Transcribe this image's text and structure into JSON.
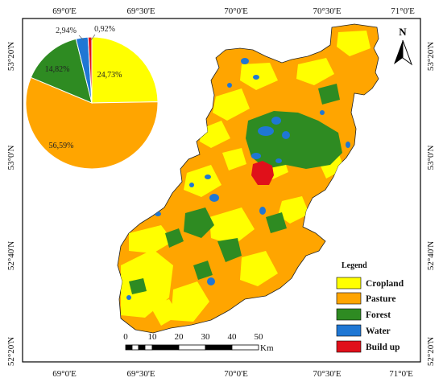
{
  "colors": {
    "cropland": "#ffff00",
    "pasture": "#ffa500",
    "forest": "#2e8b22",
    "water": "#1f77d4",
    "buildup": "#e0101a",
    "frame": "#000000"
  },
  "coordinates": {
    "top": [
      "69°0'E",
      "69°30'E",
      "70°0'E",
      "70°30'E",
      "71°0'E"
    ],
    "bottom": [
      "69°0'E",
      "69°30'E",
      "70°0'E",
      "70°30'E",
      "71°0'E"
    ],
    "left": [
      "53°20'N",
      "53°0'N",
      "52°40'N",
      "52°20'N"
    ],
    "right": [
      "53°20'N",
      "53°0'N",
      "52°40'N",
      "52°20'N"
    ]
  },
  "north_arrow": {
    "label": "N",
    "icon": "north-arrow-icon"
  },
  "legend": {
    "title": "Legend",
    "items": [
      {
        "label": "Cropland",
        "color": "#ffff00"
      },
      {
        "label": "Pasture",
        "color": "#ffa500"
      },
      {
        "label": "Forest",
        "color": "#2e8b22"
      },
      {
        "label": "Water",
        "color": "#1f77d4"
      },
      {
        "label": "Build up",
        "color": "#e0101a"
      }
    ]
  },
  "scale_bar": {
    "ticks": [
      "0",
      "10",
      "20",
      "30",
      "40",
      "50"
    ],
    "unit": "Km"
  },
  "pie": {
    "slices": [
      {
        "class": "Cropland",
        "value": 24.73,
        "label": "24,73%",
        "color": "#ffff00"
      },
      {
        "class": "Pasture",
        "value": 56.59,
        "label": "56,59%",
        "color": "#ffa500"
      },
      {
        "class": "Forest",
        "value": 14.82,
        "label": "14,82%",
        "color": "#2e8b22"
      },
      {
        "class": "Water",
        "value": 2.94,
        "label": "2,94%",
        "color": "#1f77d4"
      },
      {
        "class": "Build up",
        "value": 0.92,
        "label": "0,92%",
        "color": "#e0101a"
      }
    ]
  }
}
